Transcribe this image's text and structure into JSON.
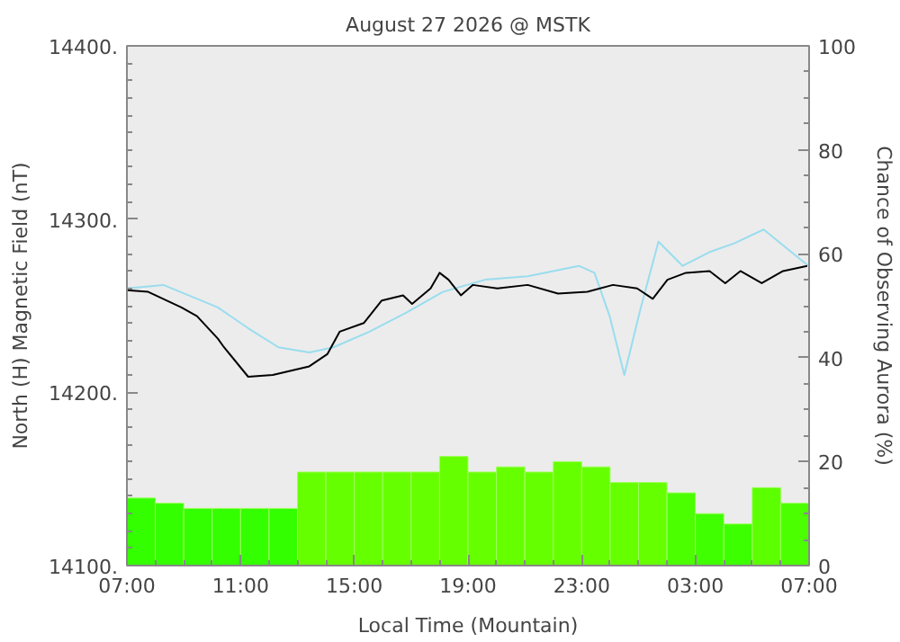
{
  "chart_data": {
    "type": "line",
    "title": "August 27 2026 @ MSTK",
    "xlabel": "Local Time (Mountain)",
    "ylabel": "North (H) Magnetic Field (nT)",
    "y2label": "Chance of Observing Aurora (%)",
    "xlim": [
      "2026-08-27T07:00",
      "2026-08-28T07:00"
    ],
    "xticks": [
      {
        "value": "2026-08-27T07:00",
        "label": "07:00"
      },
      {
        "value": "2026-08-27T11:00",
        "label": "11:00"
      },
      {
        "value": "2026-08-27T15:00",
        "label": "15:00"
      },
      {
        "value": "2026-08-27T19:00",
        "label": "19:00"
      },
      {
        "value": "2026-08-27T23:00",
        "label": "23:00"
      },
      {
        "value": "2026-08-28T03:00",
        "label": "03:00"
      },
      {
        "value": "2026-08-28T07:00",
        "label": "07:00"
      }
    ],
    "ylim": [
      14100,
      14400
    ],
    "yticks": [
      {
        "value": 14100,
        "label": "14100."
      },
      {
        "value": 14200,
        "label": "14200."
      },
      {
        "value": 14300,
        "label": "14300."
      },
      {
        "value": 14400,
        "label": "14400."
      }
    ],
    "y2lim": [
      0,
      100
    ],
    "y2ticks": [
      0,
      20,
      40,
      60,
      80,
      100
    ],
    "grid": false,
    "series": [
      {
        "type": "bar",
        "axis": "y2",
        "x": [
          "2026-08-27T07:30",
          "2026-08-27T08:30",
          "2026-08-27T09:30",
          "2026-08-27T10:30",
          "2026-08-27T11:30",
          "2026-08-27T12:30",
          "2026-08-27T13:30",
          "2026-08-27T14:30",
          "2026-08-27T15:30",
          "2026-08-27T16:30",
          "2026-08-27T17:30",
          "2026-08-27T18:30",
          "2026-08-27T19:30",
          "2026-08-27T20:30",
          "2026-08-27T21:30",
          "2026-08-27T22:30",
          "2026-08-27T23:30",
          "2026-08-28T00:30",
          "2026-08-28T01:30",
          "2026-08-28T02:30",
          "2026-08-28T03:30",
          "2026-08-28T04:30",
          "2026-08-28T05:30",
          "2026-08-28T06:30"
        ],
        "values": [
          13,
          12,
          11,
          11,
          11,
          11,
          18,
          18,
          18,
          18,
          18,
          21,
          18,
          19,
          18,
          20,
          19,
          16,
          16,
          14,
          10,
          8,
          15,
          12
        ],
        "colors": [
          "#33ff00",
          "#33ff00",
          "#33ff00",
          "#33ff00",
          "#33ff00",
          "#33ff00",
          "#66ff00",
          "#66ff00",
          "#66ff00",
          "#66ff00",
          "#66ff00",
          "#66ff00",
          "#66ff00",
          "#66ff00",
          "#66ff00",
          "#66ff00",
          "#66ff00",
          "#66ff00",
          "#66ff00",
          "#4cff00",
          "#40ff00",
          "#3cff00",
          "#5cff00",
          "#4cff00"
        ]
      },
      {
        "color": "#99ddee",
        "x": [
          "2026-08-27T07:00",
          "2026-08-27T08:17",
          "2026-08-27T10:12",
          "2026-08-27T11:16",
          "2026-08-27T12:20",
          "2026-08-27T13:25",
          "2026-08-27T14:16",
          "2026-08-27T15:32",
          "2026-08-27T16:50",
          "2026-08-27T18:07",
          "2026-08-27T19:36",
          "2026-08-27T21:06",
          "2026-08-27T22:54",
          "2026-08-27T23:27",
          "2026-08-27T23:59",
          "2026-08-28T00:30",
          "2026-08-28T01:03",
          "2026-08-28T01:42",
          "2026-08-28T02:33",
          "2026-08-28T03:30",
          "2026-08-28T04:22",
          "2026-08-28T05:24",
          "2026-08-28T06:54",
          "2026-08-28T07:00"
        ],
        "values": [
          14260,
          14262,
          14249,
          14237,
          14226,
          14223,
          14226,
          14235,
          14246,
          14258,
          14265,
          14267,
          14273,
          14269,
          14244,
          14210,
          14247,
          14287,
          14273,
          14281,
          14286,
          14294,
          14274,
          14273
        ]
      },
      {
        "color": "#000000",
        "x": [
          "2026-08-27T07:00",
          "2026-08-27T07:45",
          "2026-08-27T08:55",
          "2026-08-27T09:28",
          "2026-08-27T10:12",
          "2026-08-27T10:25",
          "2026-08-27T11:16",
          "2026-08-27T12:08",
          "2026-08-27T13:25",
          "2026-08-27T14:03",
          "2026-08-27T14:29",
          "2026-08-27T15:20",
          "2026-08-27T15:58",
          "2026-08-27T16:43",
          "2026-08-27T17:02",
          "2026-08-27T17:41",
          "2026-08-27T18:00",
          "2026-08-27T18:19",
          "2026-08-27T18:45",
          "2026-08-27T19:10",
          "2026-08-27T20:02",
          "2026-08-27T21:06",
          "2026-08-27T22:10",
          "2026-08-27T23:12",
          "2026-08-28T00:06",
          "2026-08-28T00:57",
          "2026-08-28T01:30",
          "2026-08-28T02:01",
          "2026-08-28T02:40",
          "2026-08-28T03:30",
          "2026-08-28T04:03",
          "2026-08-28T04:35",
          "2026-08-28T05:20",
          "2026-08-28T06:05",
          "2026-08-28T06:56"
        ],
        "values": [
          14259,
          14258,
          14249,
          14244,
          14231,
          14226,
          14209,
          14210,
          14215,
          14222,
          14235,
          14240,
          14253,
          14256,
          14251,
          14260,
          14269,
          14265,
          14256,
          14262,
          14260,
          14262,
          14257,
          14258,
          14262,
          14260,
          14254,
          14265,
          14269,
          14270,
          14263,
          14270,
          14263,
          14270,
          14273
        ]
      }
    ]
  }
}
